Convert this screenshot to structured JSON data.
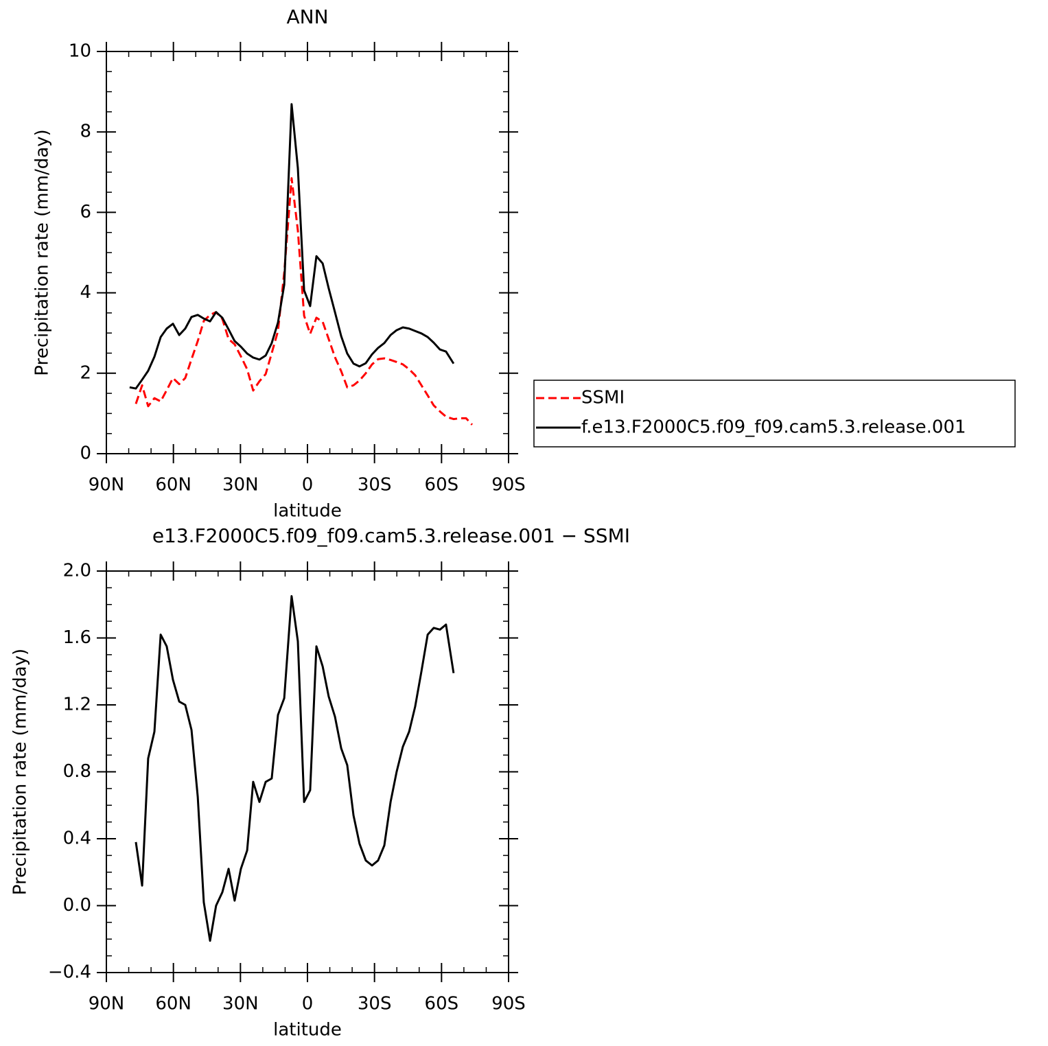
{
  "chart_data": [
    {
      "type": "line",
      "title": "ANN",
      "xlabel": "latitude",
      "ylabel": "Precipitation rate (mm/day)",
      "xlim": [
        90,
        -90
      ],
      "xticks": [
        {
          "value": 90,
          "label": "90N"
        },
        {
          "value": 60,
          "label": "60N"
        },
        {
          "value": 30,
          "label": "30N"
        },
        0,
        {
          "value": -30,
          "label": "30S"
        },
        {
          "value": -60,
          "label": "60S"
        },
        {
          "value": -90,
          "label": "90S"
        }
      ],
      "xminorticks": [
        80,
        70,
        50,
        40,
        20,
        10,
        -10,
        -20,
        -40,
        -50,
        -70,
        -80
      ],
      "ylim": [
        0,
        10
      ],
      "yticks": [
        0,
        2,
        4,
        6,
        8,
        10
      ],
      "yminorticks": [
        0.5,
        1,
        1.5,
        2.5,
        3,
        3.5,
        4.5,
        5,
        5.5,
        6.5,
        7,
        7.5,
        8.5,
        9,
        9.5
      ],
      "legend": "right",
      "series": [
        {
          "name": "SSMI",
          "color": "#ff0000",
          "style": "dashed",
          "x": [
            76.8,
            74.0,
            71.3,
            68.5,
            65.7,
            63.0,
            60.2,
            57.4,
            54.7,
            51.9,
            49.1,
            46.4,
            43.6,
            40.9,
            38.1,
            35.3,
            32.6,
            29.8,
            27.0,
            24.3,
            21.5,
            18.7,
            16.0,
            13.2,
            10.4,
            7.1,
            4.3,
            1.5,
            -1.2,
            -4.0,
            -6.8,
            -9.5,
            -12.3,
            -15.1,
            -17.8,
            -20.6,
            -23.3,
            -26.1,
            -28.9,
            -31.6,
            -34.4,
            -37.2,
            -39.9,
            -42.7,
            -45.5,
            -48.2,
            -51.0,
            -53.8,
            -56.5,
            -59.3,
            -62.0,
            -65.4,
            -68.2,
            -71.0,
            -73.7
          ],
          "values": [
            1.24,
            1.7,
            1.18,
            1.38,
            1.3,
            1.58,
            1.88,
            1.73,
            1.88,
            2.35,
            2.8,
            3.3,
            3.45,
            3.52,
            3.35,
            2.85,
            2.72,
            2.42,
            2.1,
            1.57,
            1.8,
            1.98,
            2.5,
            3.05,
            4.5,
            6.85,
            5.55,
            3.43,
            2.98,
            3.38,
            3.28,
            2.85,
            2.4,
            2.05,
            1.65,
            1.7,
            1.82,
            2.0,
            2.22,
            2.35,
            2.37,
            2.33,
            2.28,
            2.22,
            2.1,
            1.95,
            1.7,
            1.45,
            1.2,
            1.05,
            0.92,
            0.86,
            0.88,
            0.88,
            0.72
          ]
        },
        {
          "name": "f.e13.F2000C5.f09_f09.cam5.3.release.001",
          "color": "#000000",
          "style": "solid",
          "x": [
            79.6,
            76.8,
            74.0,
            71.3,
            68.5,
            65.7,
            63.0,
            60.2,
            57.4,
            54.7,
            51.9,
            49.1,
            46.4,
            43.6,
            40.9,
            38.1,
            35.3,
            32.6,
            29.8,
            27.0,
            24.3,
            21.5,
            18.7,
            16.0,
            13.2,
            10.4,
            7.1,
            4.3,
            1.5,
            -1.2,
            -4.0,
            -6.8,
            -9.5,
            -12.3,
            -15.1,
            -17.8,
            -20.6,
            -23.3,
            -26.1,
            -28.9,
            -31.6,
            -34.4,
            -37.2,
            -39.9,
            -42.7,
            -45.5,
            -48.2,
            -51.0,
            -53.8,
            -56.5,
            -59.3,
            -62.0,
            -65.4
          ],
          "values": [
            1.65,
            1.62,
            1.84,
            2.06,
            2.41,
            2.9,
            3.11,
            3.23,
            2.95,
            3.11,
            3.4,
            3.45,
            3.36,
            3.29,
            3.52,
            3.38,
            3.09,
            2.8,
            2.66,
            2.49,
            2.39,
            2.34,
            2.44,
            2.75,
            3.26,
            4.2,
            8.69,
            7.1,
            4.06,
            3.67,
            4.91,
            4.73,
            4.11,
            3.52,
            2.92,
            2.49,
            2.24,
            2.17,
            2.25,
            2.47,
            2.63,
            2.75,
            2.95,
            3.07,
            3.14,
            3.11,
            3.05,
            2.99,
            2.9,
            2.76,
            2.59,
            2.54,
            2.24
          ]
        }
      ]
    },
    {
      "type": "line",
      "title": "e13.F2000C5.f09_f09.cam5.3.release.001 − SSMI",
      "xlabel": "latitude",
      "ylabel": "Precipitation rate (mm/day)",
      "xlim": [
        90,
        -90
      ],
      "xticks": [
        {
          "value": 90,
          "label": "90N"
        },
        {
          "value": 60,
          "label": "60N"
        },
        {
          "value": 30,
          "label": "30N"
        },
        0,
        {
          "value": -30,
          "label": "30S"
        },
        {
          "value": -60,
          "label": "60S"
        },
        {
          "value": -90,
          "label": "90S"
        }
      ],
      "xminorticks": [
        80,
        70,
        50,
        40,
        20,
        10,
        -10,
        -20,
        -40,
        -50,
        -70,
        -80
      ],
      "ylim": [
        -0.4,
        2.0
      ],
      "yticks": [
        {
          "value": -0.4,
          "label": "−0.4"
        },
        {
          "value": 0,
          "label": "0.0"
        },
        {
          "value": 0.4,
          "label": "0.4"
        },
        {
          "value": 0.8,
          "label": "0.8"
        },
        {
          "value": 1.2,
          "label": "1.2"
        },
        {
          "value": 1.6,
          "label": "1.6"
        },
        {
          "value": 2.0,
          "label": "2.0"
        }
      ],
      "yminorticks": [
        -0.3,
        -0.2,
        -0.1,
        0.1,
        0.2,
        0.3,
        0.5,
        0.6,
        0.7,
        0.9,
        1.0,
        1.1,
        1.3,
        1.4,
        1.5,
        1.7,
        1.8,
        1.9
      ],
      "series": [
        {
          "color": "#000000",
          "style": "solid",
          "x": [
            76.8,
            74.0,
            71.3,
            68.5,
            65.7,
            63.0,
            60.2,
            57.4,
            54.7,
            51.9,
            49.1,
            46.4,
            43.6,
            40.9,
            38.1,
            35.3,
            32.6,
            29.8,
            27.0,
            24.3,
            21.5,
            18.7,
            16.0,
            13.2,
            10.4,
            7.1,
            4.3,
            1.5,
            -1.2,
            -4.0,
            -6.8,
            -9.5,
            -12.3,
            -15.1,
            -17.8,
            -20.6,
            -23.3,
            -26.1,
            -28.9,
            -31.6,
            -34.4,
            -37.2,
            -39.9,
            -42.7,
            -45.5,
            -48.2,
            -51.0,
            -53.8,
            -56.5,
            -59.3,
            -62.0,
            -65.4
          ],
          "values": [
            0.38,
            0.12,
            0.88,
            1.04,
            1.62,
            1.55,
            1.35,
            1.22,
            1.2,
            1.05,
            0.65,
            0.02,
            -0.21,
            0.0,
            0.08,
            0.22,
            0.03,
            0.22,
            0.33,
            0.74,
            0.62,
            0.74,
            0.76,
            1.14,
            1.24,
            1.85,
            1.58,
            0.62,
            0.69,
            1.55,
            1.43,
            1.25,
            1.13,
            0.94,
            0.84,
            0.54,
            0.37,
            0.27,
            0.24,
            0.27,
            0.36,
            0.62,
            0.8,
            0.95,
            1.04,
            1.19,
            1.4,
            1.62,
            1.66,
            1.65,
            1.68,
            1.39
          ]
        }
      ]
    }
  ]
}
